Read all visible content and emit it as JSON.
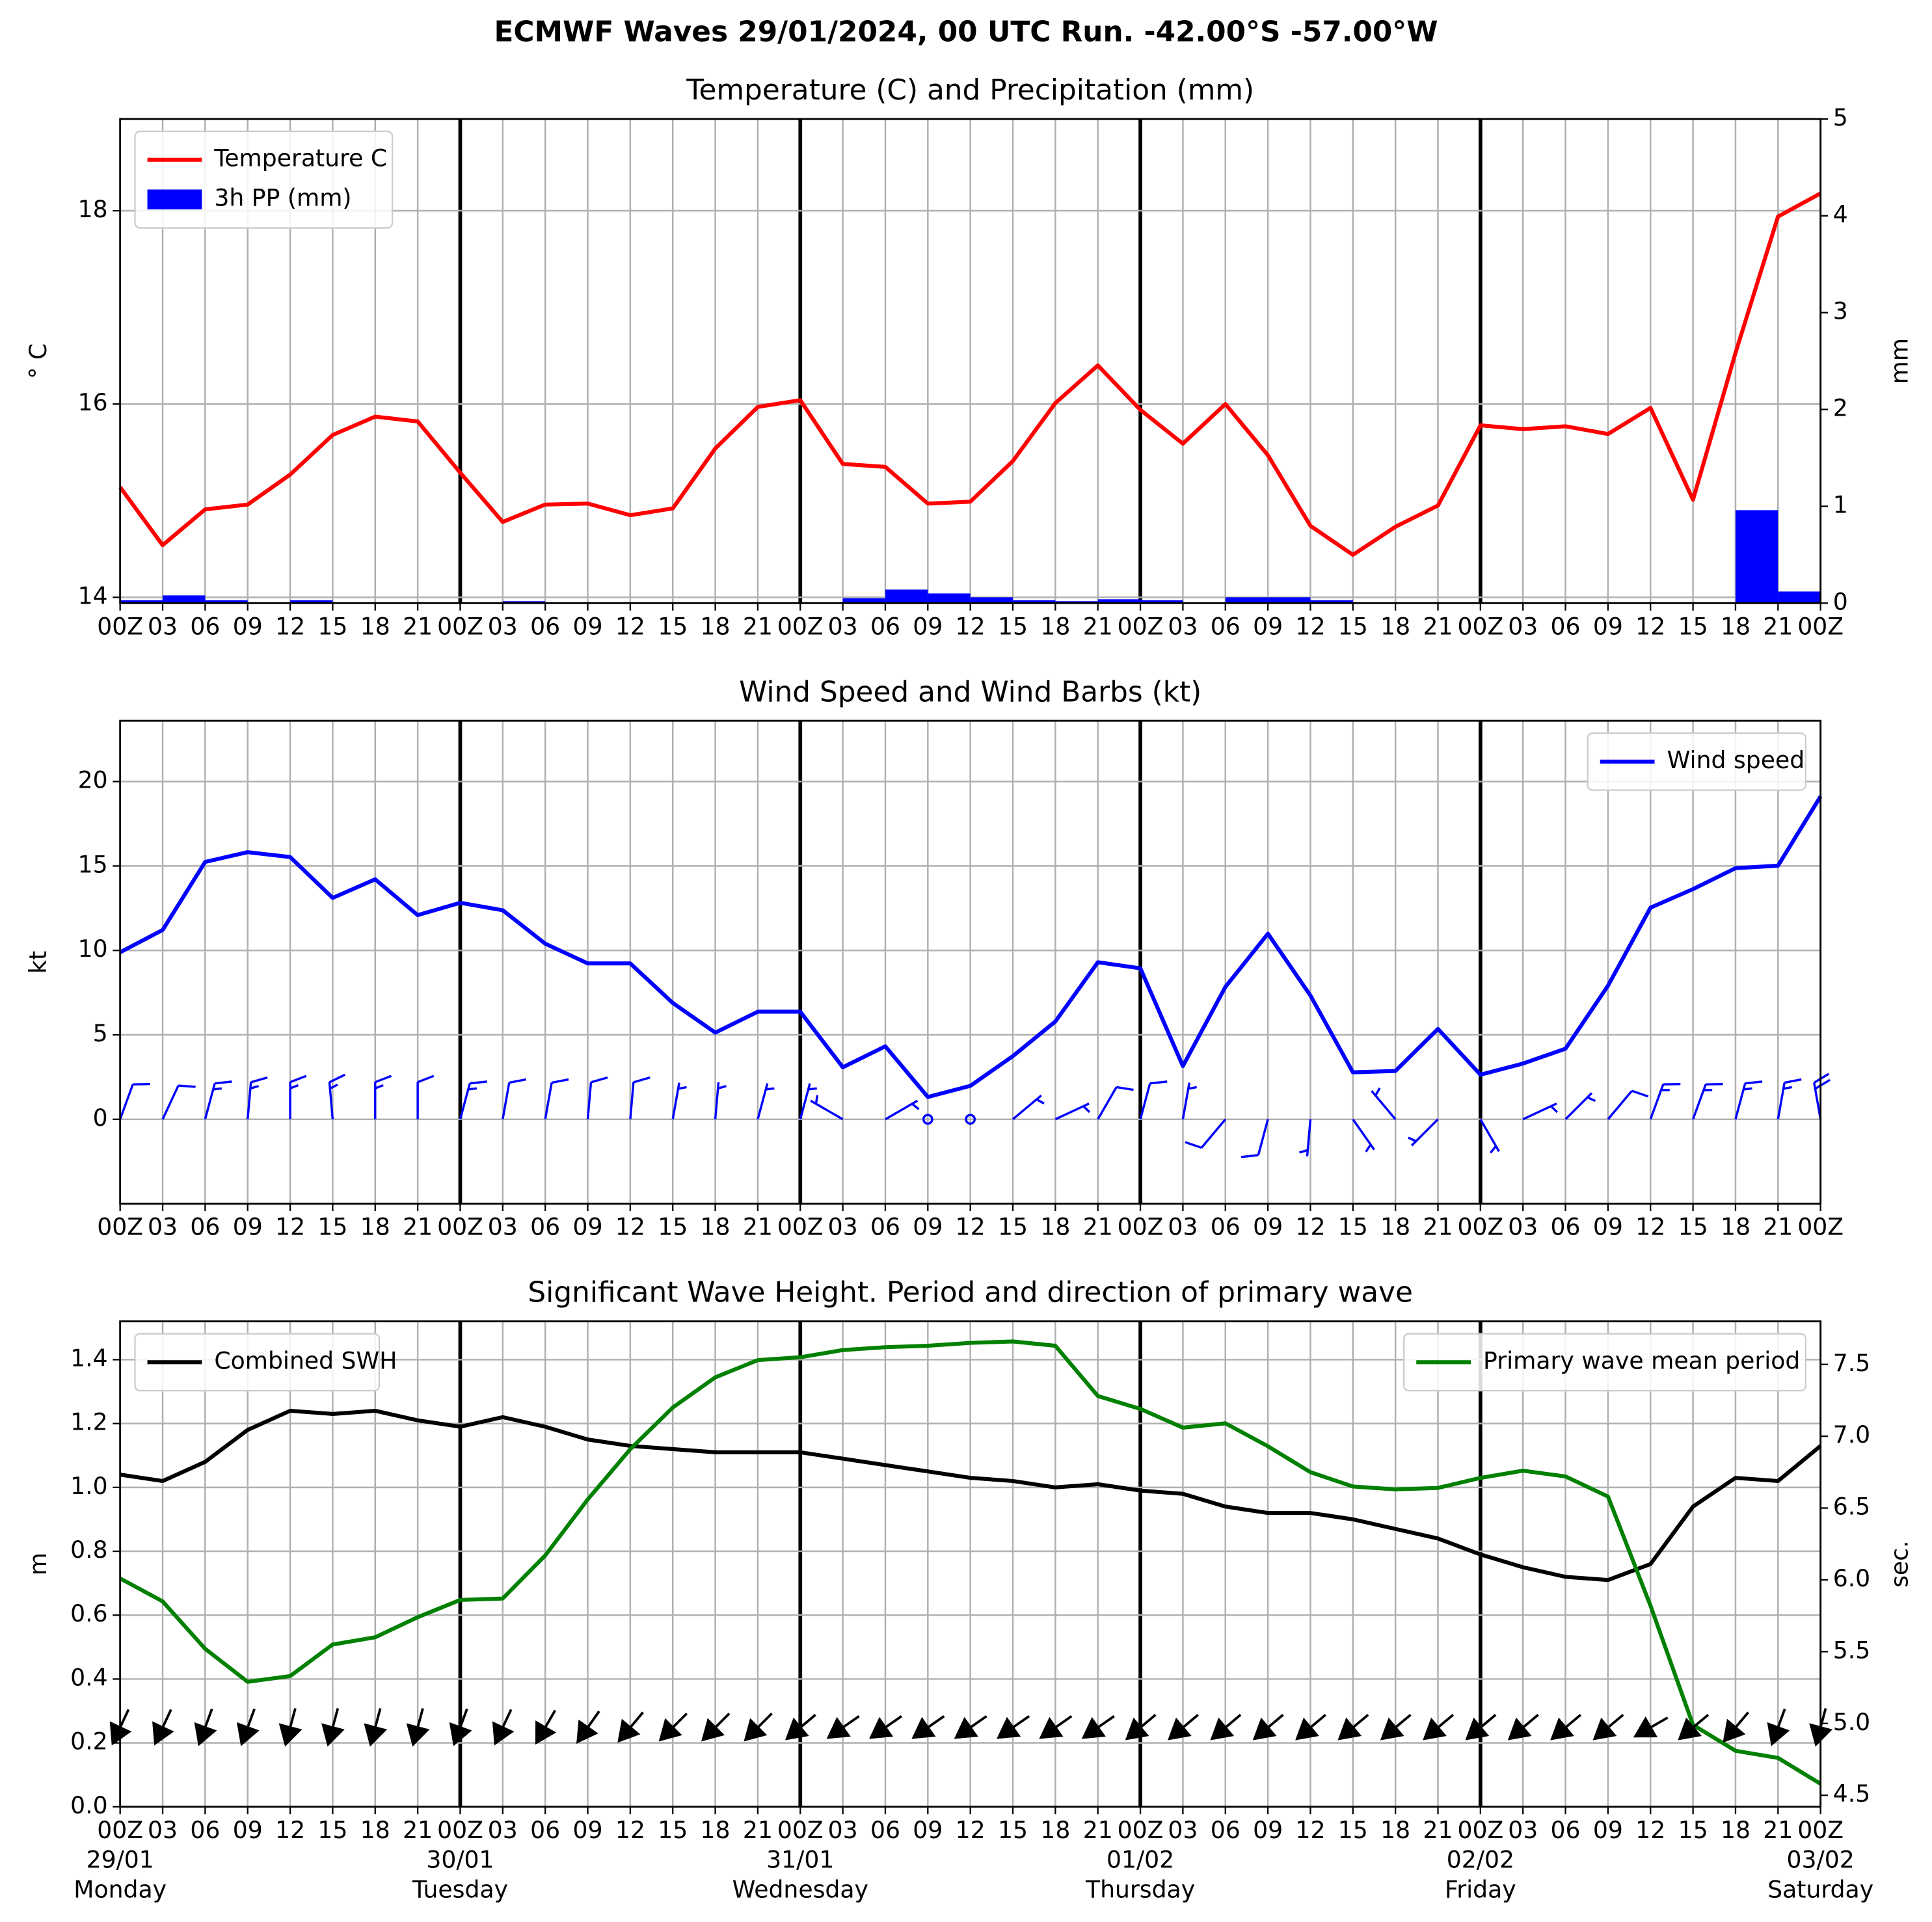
{
  "title": "ECMWF Waves 29/01/2024, 00 UTC Run. -42.00°S -57.00°W",
  "chart_data": [
    {
      "type": "line",
      "title": "Temperature (C) and Precipitation (mm)",
      "ylabel": "° C",
      "y2label": "mm",
      "categories": [
        "00Z",
        "03",
        "06",
        "09",
        "12",
        "15",
        "18",
        "21",
        "00Z",
        "03",
        "06",
        "09",
        "12",
        "15",
        "18",
        "21",
        "00Z",
        "03",
        "06",
        "09",
        "12",
        "15",
        "18",
        "21",
        "00Z",
        "03",
        "06",
        "09",
        "12",
        "15",
        "18",
        "21",
        "00Z",
        "03",
        "06",
        "09",
        "12",
        "15",
        "18",
        "21",
        "00Z"
      ],
      "series": [
        {
          "name": "Temperature C",
          "color": "#ff0000",
          "values": [
            15.14,
            14.54,
            14.91,
            14.96,
            15.27,
            15.68,
            15.87,
            15.82,
            15.29,
            14.78,
            14.96,
            14.97,
            14.85,
            14.92,
            15.54,
            15.97,
            16.04,
            15.38,
            15.35,
            14.97,
            14.99,
            15.41,
            16.01,
            16.4,
            15.94,
            15.59,
            16.0,
            15.47,
            14.74,
            14.44,
            14.73,
            14.95,
            15.78,
            15.74,
            15.77,
            15.69,
            15.96,
            15.01,
            16.53,
            17.94,
            18.18
          ]
        },
        {
          "name": "3h PP (mm)",
          "color": "#0000ff",
          "axis": "y2",
          "style": "bar",
          "values": [
            0.03,
            0.08,
            0.03,
            0,
            0.03,
            0,
            0,
            0,
            0,
            0.02,
            0,
            0,
            0,
            0,
            0,
            0,
            0,
            0.05,
            0.14,
            0.1,
            0.06,
            0.03,
            0.02,
            0.04,
            0.03,
            0,
            0.06,
            0.06,
            0.03,
            0,
            0,
            0,
            0,
            0,
            0,
            0,
            0,
            0,
            0.96,
            0.12,
            null
          ]
        }
      ],
      "ylim": [
        13.94,
        18.95
      ],
      "yticks": [
        14,
        16,
        18
      ],
      "y2lim": [
        0,
        5
      ],
      "y2ticks": [
        0,
        1,
        2,
        3,
        4,
        5
      ],
      "grid": true,
      "legend": "upper left"
    },
    {
      "type": "line",
      "title": "Wind Speed and Wind Barbs (kt)",
      "ylabel": "kt",
      "categories": [
        "00Z",
        "03",
        "06",
        "09",
        "12",
        "15",
        "18",
        "21",
        "00Z",
        "03",
        "06",
        "09",
        "12",
        "15",
        "18",
        "21",
        "00Z",
        "03",
        "06",
        "09",
        "12",
        "15",
        "18",
        "21",
        "00Z",
        "03",
        "06",
        "09",
        "12",
        "15",
        "18",
        "21",
        "00Z",
        "03",
        "06",
        "09",
        "12",
        "15",
        "18",
        "21",
        "00Z"
      ],
      "series": [
        {
          "name": "Wind speed",
          "color": "#0000ff",
          "values": [
            9.89,
            11.21,
            15.24,
            15.82,
            15.53,
            13.11,
            14.21,
            12.09,
            12.82,
            12.38,
            10.4,
            9.23,
            9.23,
            6.89,
            5.13,
            6.37,
            6.37,
            3.08,
            4.32,
            1.32,
            1.98,
            3.74,
            5.79,
            9.3,
            8.94,
            3.15,
            7.84,
            10.99,
            7.33,
            2.78,
            2.86,
            5.35,
            2.64,
            3.3,
            4.18,
            7.91,
            12.53,
            13.63,
            14.87,
            15.02,
            19.12
          ]
        }
      ],
      "wind_direction": [
        20,
        25,
        15,
        5,
        0,
        355,
        0,
        0,
        15,
        10,
        10,
        5,
        5,
        10,
        5,
        15,
        15,
        300,
        60,
        0,
        0,
        50,
        65,
        30,
        15,
        10,
        220,
        195,
        185,
        145,
        320,
        225,
        150,
        65,
        45,
        40,
        20,
        20,
        15,
        10,
        350
      ],
      "barb_color": "#0000ff",
      "ylim": [
        -5,
        23.6
      ],
      "yticks": [
        0,
        5,
        10,
        15,
        20
      ],
      "grid": true,
      "legend": "upper right"
    },
    {
      "type": "line",
      "title": "Significant Wave Height. Period and direction of primary wave",
      "ylabel": "m",
      "y2label": "sec.",
      "y2label_color": "#008000",
      "categories": [
        "00Z",
        "03",
        "06",
        "09",
        "12",
        "15",
        "18",
        "21",
        "00Z",
        "03",
        "06",
        "09",
        "12",
        "15",
        "18",
        "21",
        "00Z",
        "03",
        "06",
        "09",
        "12",
        "15",
        "18",
        "21",
        "00Z",
        "03",
        "06",
        "09",
        "12",
        "15",
        "18",
        "21",
        "00Z",
        "03",
        "06",
        "09",
        "12",
        "15",
        "18",
        "21",
        "00Z"
      ],
      "day_dates": [
        "29/01",
        "30/01",
        "31/01",
        "01/02",
        "02/02",
        "03/02"
      ],
      "day_names": [
        "Monday",
        "Tuesday",
        "Wednesday",
        "Thursday",
        "Friday",
        "Saturday"
      ],
      "series": [
        {
          "name": "Combined SWH",
          "color": "#000000",
          "legend": "upper left",
          "values": [
            1.04,
            1.02,
            1.08,
            1.18,
            1.24,
            1.23,
            1.24,
            1.21,
            1.19,
            1.22,
            1.19,
            1.15,
            1.13,
            1.12,
            1.11,
            1.11,
            1.11,
            1.09,
            1.07,
            1.05,
            1.03,
            1.02,
            1.0,
            1.01,
            0.99,
            0.98,
            0.94,
            0.92,
            0.92,
            0.9,
            0.87,
            0.84,
            0.79,
            0.75,
            0.72,
            0.71,
            0.76,
            0.94,
            1.03,
            1.02,
            1.13
          ]
        },
        {
          "name": "Primary wave mean period",
          "color": "#008000",
          "axis": "y2",
          "legend": "upper right",
          "values": [
            6.01,
            5.85,
            5.52,
            5.29,
            5.33,
            5.55,
            5.6,
            5.74,
            5.86,
            5.87,
            6.17,
            6.56,
            6.91,
            7.2,
            7.41,
            7.53,
            7.55,
            7.6,
            7.62,
            7.63,
            7.65,
            7.66,
            7.63,
            7.28,
            7.19,
            7.06,
            7.09,
            6.93,
            6.75,
            6.65,
            6.63,
            6.64,
            6.71,
            6.76,
            6.72,
            6.58,
            5.82,
            4.99,
            4.81,
            4.76,
            4.58
          ]
        }
      ],
      "wave_direction": [
        25,
        25,
        20,
        20,
        15,
        15,
        15,
        15,
        20,
        25,
        30,
        35,
        40,
        45,
        45,
        45,
        50,
        55,
        55,
        55,
        55,
        55,
        55,
        55,
        50,
        50,
        50,
        50,
        50,
        50,
        50,
        50,
        50,
        50,
        50,
        50,
        60,
        50,
        40,
        20,
        15
      ],
      "arrow_color": "#000000",
      "ylim": [
        0,
        1.52
      ],
      "yticks": [
        {
          "value": 0,
          "label": "0.0"
        },
        0.2,
        0.4,
        0.6,
        0.8,
        {
          "value": 1,
          "label": "1.0"
        },
        1.2,
        1.4
      ],
      "y2lim": [
        4.42,
        7.8
      ],
      "y2ticks": [
        4.5,
        {
          "value": 5,
          "label": "5.0"
        },
        5.5,
        {
          "value": 6,
          "label": "6.0"
        },
        6.5,
        {
          "value": 7,
          "label": "7.0"
        },
        7.5
      ],
      "grid": true
    }
  ]
}
